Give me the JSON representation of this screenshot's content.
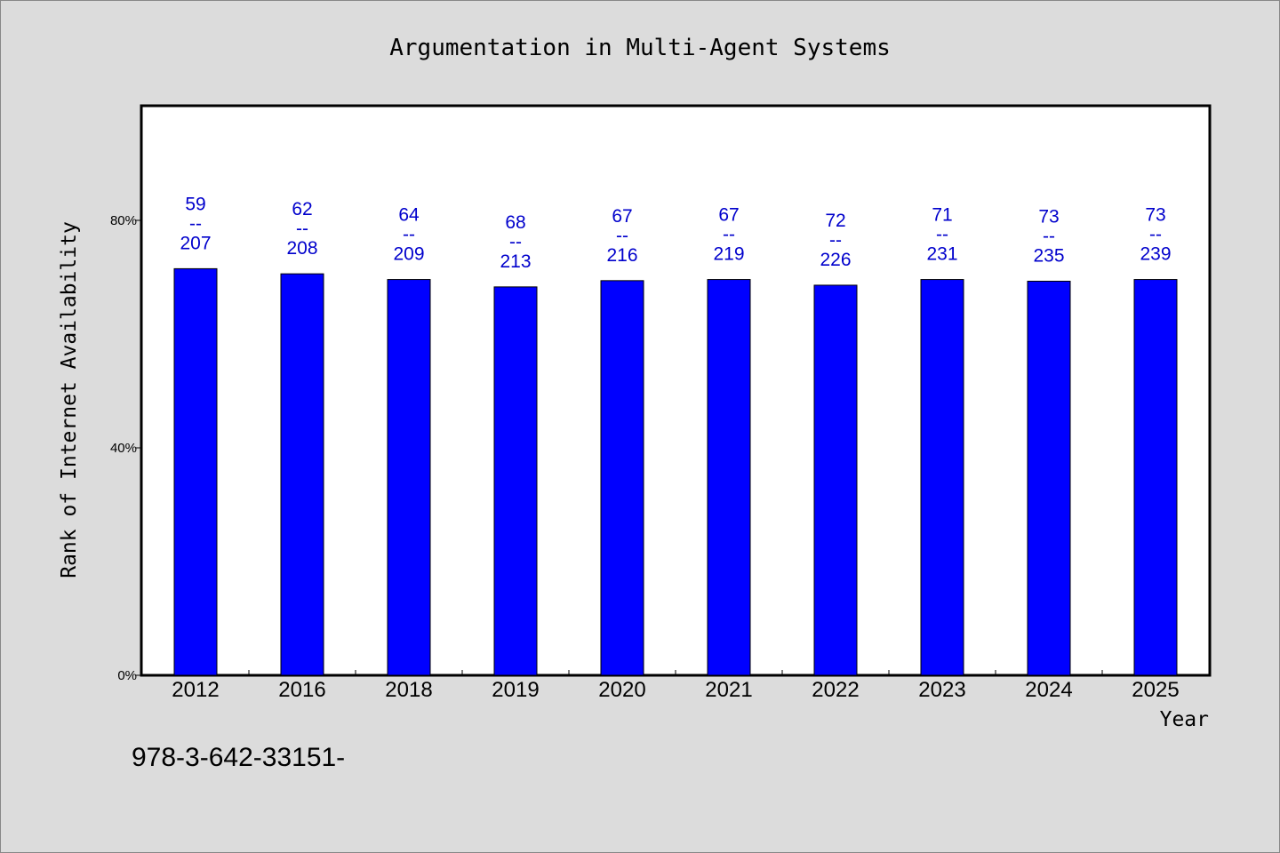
{
  "chart_data": {
    "type": "bar",
    "title": "Argumentation in Multi-Agent Systems",
    "xlabel": "Year",
    "ylabel": "Rank of Internet Availability",
    "categories": [
      "2012",
      "2016",
      "2018",
      "2019",
      "2020",
      "2021",
      "2022",
      "2023",
      "2024",
      "2025"
    ],
    "values": [
      71.5,
      70.6,
      69.6,
      68.3,
      69.4,
      69.6,
      68.6,
      69.6,
      69.3,
      69.6
    ],
    "labels": [
      [
        "59",
        "--",
        "207"
      ],
      [
        "62",
        "--",
        "208"
      ],
      [
        "64",
        "--",
        "209"
      ],
      [
        "68",
        "--",
        "213"
      ],
      [
        "67",
        "--",
        "216"
      ],
      [
        "67",
        "--",
        "219"
      ],
      [
        "72",
        "--",
        "226"
      ],
      [
        "71",
        "--",
        "231"
      ],
      [
        "73",
        "--",
        "235"
      ],
      [
        "73",
        "--",
        "239"
      ]
    ],
    "yticks": [
      {
        "value": 0,
        "label": "0%"
      },
      {
        "value": 40,
        "label": "40%"
      },
      {
        "value": 80,
        "label": "80%"
      }
    ],
    "ylim": [
      0,
      100
    ],
    "grid": false,
    "legend": "none",
    "bar_color": "#0000ff",
    "label_color": "#0000cc"
  },
  "footer": {
    "text": "978-3-642-33151-"
  }
}
